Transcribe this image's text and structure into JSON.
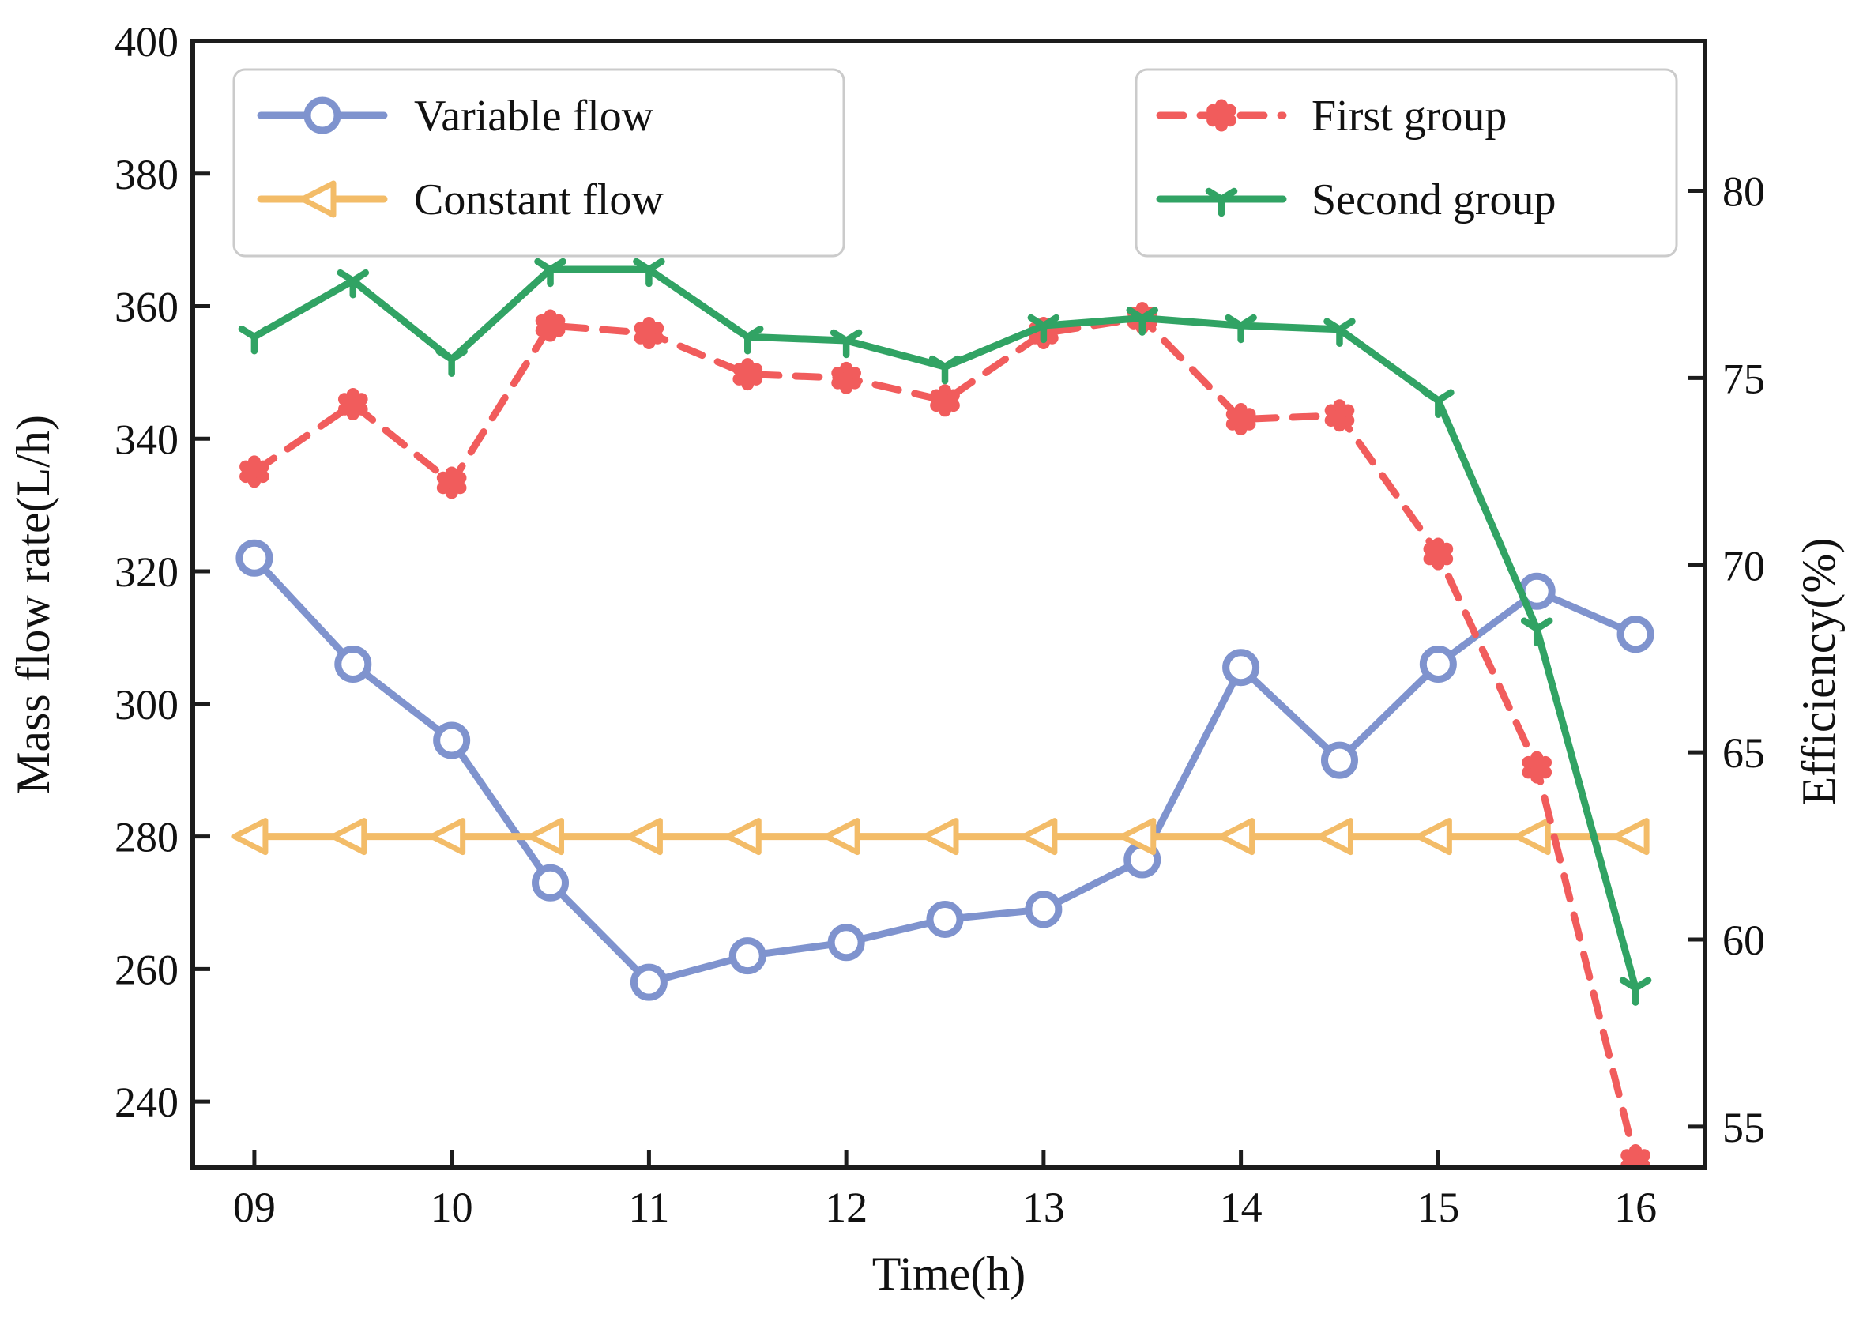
{
  "chart_data": {
    "type": "line",
    "title": "",
    "xlabel": "Time(h)",
    "x": [
      9,
      9.5,
      10,
      10.5,
      11,
      11.5,
      12,
      12.5,
      13,
      13.5,
      14,
      14.5,
      15,
      15.5,
      16
    ],
    "x_tick_values": [
      9,
      10,
      11,
      12,
      13,
      14,
      15,
      16
    ],
    "x_tick_labels": [
      "09",
      "10",
      "11",
      "12",
      "13",
      "14",
      "15",
      "16"
    ],
    "xlim": [
      8.688,
      16.352
    ],
    "grid": false,
    "left_axis": {
      "label": "Mass flow rate(L/h)",
      "lim": [
        230,
        400
      ],
      "ticks": [
        240,
        260,
        280,
        300,
        320,
        340,
        360,
        380,
        400
      ]
    },
    "right_axis": {
      "label": "Efficiency(%)",
      "lim": [
        53.9,
        84.0
      ],
      "ticks": [
        55,
        60,
        65,
        70,
        75,
        80
      ]
    },
    "series": [
      {
        "name": "Variable flow",
        "axis": "left",
        "color": "#7F93CE",
        "line": "solid",
        "marker": "circle-open",
        "values": [
          322,
          306,
          294.5,
          273,
          258,
          262,
          264,
          267.5,
          269,
          276.5,
          305.5,
          291.5,
          306,
          317,
          310.5
        ]
      },
      {
        "name": "Constant flow",
        "axis": "left",
        "color": "#F3BC68",
        "line": "solid",
        "marker": "triangle-left-open",
        "values": [
          280,
          280,
          280,
          280,
          280,
          280,
          280,
          280,
          280,
          280,
          280,
          280,
          280,
          280,
          280
        ]
      },
      {
        "name": "First group",
        "axis": "right",
        "color": "#F15C5C",
        "line": "dashed",
        "marker": "flower",
        "values": [
          72.5,
          74.3,
          72.2,
          76.4,
          76.2,
          75.1,
          75.0,
          74.4,
          76.2,
          76.6,
          73.9,
          74.0,
          70.3,
          64.6,
          54.1
        ]
      },
      {
        "name": "Second group",
        "axis": "right",
        "color": "#31A364",
        "line": "solid",
        "marker": "tri-down",
        "values": [
          76.1,
          77.6,
          75.5,
          77.9,
          77.9,
          76.1,
          76.0,
          75.3,
          76.4,
          76.6,
          76.4,
          76.3,
          74.4,
          68.3,
          58.7
        ]
      }
    ],
    "legends": [
      {
        "position": "upper-left",
        "entries": [
          "Variable flow",
          "Constant flow"
        ]
      },
      {
        "position": "upper-right",
        "entries": [
          "First group",
          "Second group"
        ]
      }
    ]
  },
  "styles": {
    "background": "#ffffff",
    "frame_color": "#1c1c1c",
    "text_color": "#111111",
    "legend_border": "#cbcbcb",
    "legend_fill": "#ffffff"
  }
}
